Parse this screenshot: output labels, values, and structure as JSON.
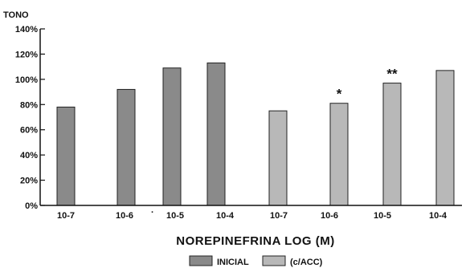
{
  "chart_data": {
    "type": "bar",
    "ylabel": "TONO",
    "xlabel": "NOREPINEFRINA LOG (M)",
    "ylim": [
      0,
      140
    ],
    "yticks": [
      0,
      20,
      40,
      60,
      80,
      100,
      120,
      140
    ],
    "ytick_labels": [
      "0%",
      "20%",
      "40%",
      "60%",
      "80%",
      "100%",
      "120%",
      "140%"
    ],
    "grid": false,
    "legend_position": "bottom",
    "categories": [
      "10-7",
      "10-6",
      "10-5",
      "10-4",
      "10-7",
      "10-6",
      "10-5",
      "10-4"
    ],
    "series": [
      {
        "name": "INICIAL",
        "color": "#8a8a8a",
        "values": [
          78,
          92,
          109,
          113,
          null,
          null,
          null,
          null
        ],
        "annotations": [
          null,
          null,
          null,
          null,
          null,
          null,
          null,
          null
        ]
      },
      {
        "name": "(c/ACC)",
        "color": "#b8b8b8",
        "values": [
          null,
          null,
          null,
          null,
          75,
          81,
          97,
          107
        ],
        "annotations": [
          null,
          null,
          null,
          null,
          null,
          "*",
          "**",
          null
        ]
      }
    ],
    "stray_mark": "·"
  }
}
